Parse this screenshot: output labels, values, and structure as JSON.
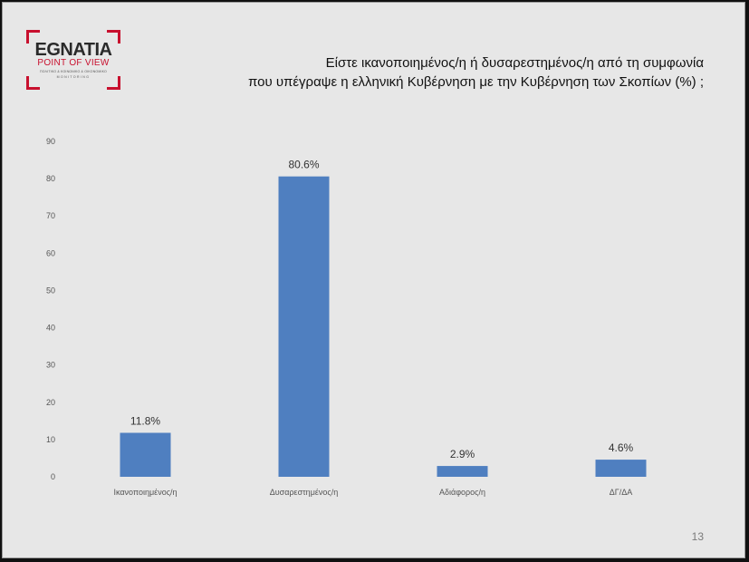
{
  "logo": {
    "brand": "EGNATIA",
    "subtitle": "POINT OF VIEW",
    "tagline": "ΠΟΛΙΤΙΚΟ & ΚΟΙΝΩΝΙΚΟ & ΟΙΚΟΝΟΜΙΚΟ",
    "monitoring": "MONITORING"
  },
  "title_lines": [
    "Είστε ικανοποιημένος/η ή δυσαρεστημένος/η  από τη συμφωνία",
    "που υπέγραψε η ελληνική Κυβέρνηση με την Κυβέρνηση των Σκοπίων (%) ;"
  ],
  "page_number": "13",
  "chart_data": {
    "type": "bar",
    "categories": [
      "Ικανοποιημένος/η",
      "Δυσαρεστημένος/η",
      "Αδιάφορος/η",
      "ΔΓ/ΔΑ"
    ],
    "values": [
      11.8,
      80.6,
      2.9,
      4.6
    ],
    "data_labels": [
      "11.8%",
      "80.6%",
      "2.9%",
      "4.6%"
    ],
    "yticks": [
      0,
      10,
      20,
      30,
      40,
      50,
      60,
      70,
      80,
      90
    ],
    "ylim": [
      0,
      90
    ],
    "bar_color": "#4f7fc0",
    "grid": false,
    "legend": "none"
  }
}
